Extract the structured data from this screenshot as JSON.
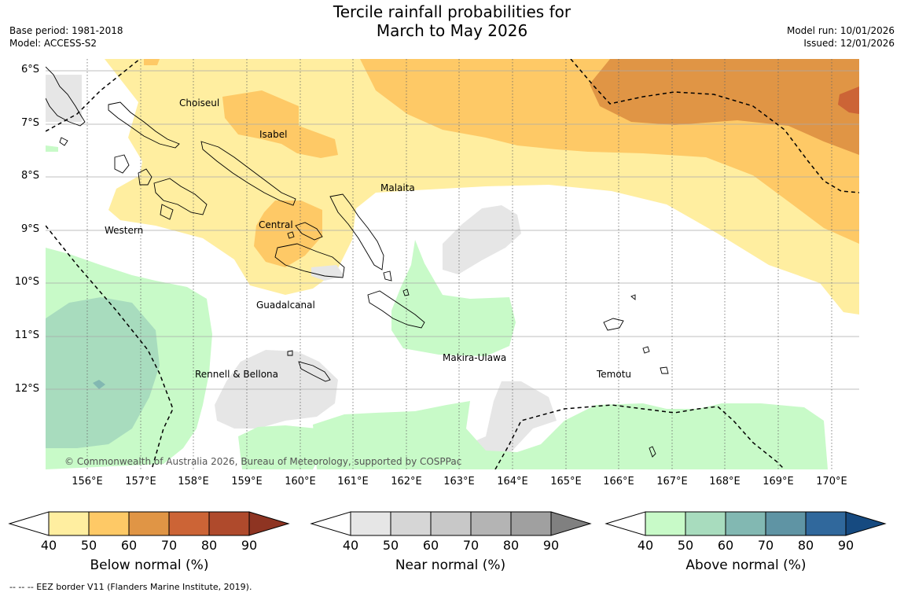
{
  "title": {
    "line1": "Tercile rainfall probabilities for",
    "line2": "March to May 2026"
  },
  "meta_left": {
    "base_period": "Base period: 1981-2018",
    "model": "Model: ACCESS-S2"
  },
  "meta_right": {
    "model_run": "Model run: 10/01/2026",
    "issued": "Issued: 12/01/2026"
  },
  "lat_labels": [
    "6°S",
    "7°S",
    "8°S",
    "9°S",
    "10°S",
    "11°S",
    "12°S"
  ],
  "lon_labels": [
    "156°E",
    "157°E",
    "158°E",
    "159°E",
    "160°E",
    "161°E",
    "162°E",
    "163°E",
    "164°E",
    "165°E",
    "166°E",
    "167°E",
    "168°E",
    "169°E",
    "170°E"
  ],
  "regions": {
    "choiseul": "Choiseul",
    "isabel": "Isabel",
    "malaita": "Malaita",
    "western": "Western",
    "central": "Central",
    "guadalcanal": "Guadalcanal",
    "makira": "Makira-Ulawa",
    "rennell": "Rennell & Bellona",
    "temotu": "Temotu"
  },
  "copyright": "© Commonwealth of Australia 2026, Bureau of Meteorology, supported by COSPPac",
  "colorbars": {
    "below": {
      "title": "Below normal (%)",
      "colors": [
        "#ffeea0",
        "#fec966",
        "#e09545",
        "#cc6436",
        "#af4a2c",
        "#8e3422"
      ]
    },
    "near": {
      "title": "Near normal (%)",
      "colors": [
        "#e6e6e6",
        "#d6d6d6",
        "#c8c8c8",
        "#b4b4b4",
        "#a0a0a0",
        "#808080"
      ]
    },
    "above": {
      "title": "Above normal (%)",
      "colors": [
        "#c8fac8",
        "#a8dcbe",
        "#82b8b2",
        "#5f94a4",
        "#30689c",
        "#164a80"
      ]
    },
    "ticks": [
      "40",
      "50",
      "60",
      "70",
      "80",
      "90"
    ]
  },
  "eez_note": "--  --  -- EEZ border V11 (Flanders Marine Institute, 2019)."
}
